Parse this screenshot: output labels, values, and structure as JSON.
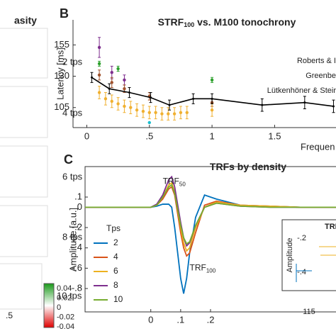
{
  "panel_a": {
    "title": "asity",
    "labels": [
      "2 tps",
      "4 tps",
      "6 tps",
      "8 tps",
      "10 tps"
    ],
    "colorbar_ticks": [
      "0.04",
      "0.02",
      "0",
      "-0.02",
      "-0.04"
    ],
    "x_tick": ".5"
  },
  "chart_data": [
    {
      "type": "scatter",
      "panel_label": "B",
      "title": "STRF",
      "title_sub": "100",
      "title_rest": " vs. M100 tonochrony",
      "y_label": "Latency [ms]",
      "x_label": "Frequen",
      "xlim": [
        -0.11,
        1.99
      ],
      "ylim": [
        89,
        175
      ],
      "xticks": [
        0,
        {
          "value": 0.5,
          "label": ".5"
        },
        1,
        1.5
      ],
      "yticks": [
        105,
        130,
        155
      ],
      "series": [
        {
          "name": "Roberts & I",
          "color": "#7e2f8e",
          "x": [
            0.1,
            0.2,
            0.3
          ],
          "values": [
            153,
            133,
            127
          ],
          "errors": [
            8,
            5,
            4
          ]
        },
        {
          "name": "Greenbe",
          "color": "#2ca02c",
          "x": [
            0.1,
            0.25,
            1.0
          ],
          "values": [
            140,
            136,
            127
          ],
          "errors": [
            2,
            2,
            2
          ]
        },
        {
          "name": "Lütkenhöner & Steir",
          "color": "#a0522d",
          "x": [
            0.1,
            0.2,
            0.3,
            0.5,
            1.0
          ],
          "values": [
            131,
            125,
            120,
            114,
            109
          ],
          "errors": [
            4,
            4,
            3,
            3,
            3
          ]
        },
        {
          "color": "#f0b030",
          "x": [
            0.1,
            0.15,
            0.2,
            0.25,
            0.3,
            0.35,
            0.4,
            0.45,
            0.5,
            0.55,
            0.6,
            0.65,
            0.7,
            0.75,
            0.8,
            1.0
          ],
          "values": [
            117,
            112,
            110,
            108,
            106,
            105,
            103,
            102,
            101,
            101,
            100,
            100,
            100,
            101,
            101,
            103
          ],
          "errors": [
            5,
            5,
            5,
            5,
            5,
            5,
            5,
            5,
            5,
            5,
            5,
            5,
            5,
            5,
            5,
            5
          ]
        },
        {
          "color": "#17becf",
          "x": [
            0.5
          ],
          "values": [
            93
          ],
          "errors": [
            0
          ]
        },
        {
          "color": "#000000",
          "line": true,
          "x": [
            0.04,
            0.18,
            0.34,
            0.51,
            0.66,
            0.85,
            1.0,
            1.4,
            1.74,
            1.97
          ],
          "values": [
            129,
            120,
            117,
            113,
            107,
            112,
            112,
            107,
            109,
            106
          ],
          "errors": [
            4,
            4,
            4,
            4,
            4,
            4,
            4,
            5,
            5,
            5
          ]
        }
      ]
    },
    {
      "type": "line",
      "panel_label": "C",
      "title": "TRFs by density",
      "y_label": "Amplitude [a.u.]",
      "legend_title": "Tps",
      "xlim": [
        -0.22,
        0.62
      ],
      "ylim": [
        -1.03,
        0.4
      ],
      "xticks": [
        0,
        {
          "value": 0.1,
          "label": ".1"
        },
        {
          "value": 0.2,
          "label": ".2"
        }
      ],
      "yticks": [
        {
          "value": 0.1,
          "label": ".1"
        },
        0,
        {
          "value": -0.2,
          "label": "-.2"
        },
        {
          "value": -0.4,
          "label": "-.4"
        },
        {
          "value": -0.6,
          "label": "-.6"
        },
        {
          "value": -0.8,
          "label": "-.8"
        }
      ],
      "annotations": [
        {
          "text": "TRF",
          "sub": "50",
          "x": 0.04,
          "y": 0.25
        },
        {
          "text": "TRF",
          "sub": "100",
          "x": 0.13,
          "y": -0.6
        }
      ],
      "x": [
        -0.22,
        -0.1,
        0,
        0.02,
        0.04,
        0.06,
        0.07,
        0.08,
        0.1,
        0.11,
        0.12,
        0.13,
        0.15,
        0.18,
        0.22,
        0.3,
        0.4,
        0.5,
        0.62
      ],
      "series": [
        {
          "name": "2",
          "color": "#0072bd",
          "values": [
            0,
            0,
            0,
            0.01,
            0.03,
            0.03,
            0.0,
            -0.2,
            -0.7,
            -0.85,
            -0.7,
            -0.45,
            -0.1,
            0.12,
            0.08,
            0.02,
            0.01,
            0,
            0
          ]
        },
        {
          "name": "4",
          "color": "#d95319",
          "values": [
            0,
            0,
            0,
            0.02,
            0.08,
            0.18,
            0.2,
            0.12,
            -0.25,
            -0.4,
            -0.48,
            -0.45,
            -0.25,
            0.02,
            0.06,
            0.02,
            0.01,
            0,
            0
          ]
        },
        {
          "name": "6",
          "color": "#edb120",
          "values": [
            0,
            0,
            0,
            0.02,
            0.1,
            0.22,
            0.24,
            0.15,
            -0.2,
            -0.35,
            -0.43,
            -0.4,
            -0.2,
            0.0,
            0.05,
            0.02,
            0.01,
            0,
            0
          ]
        },
        {
          "name": "8",
          "color": "#7e2f8e",
          "values": [
            0,
            0,
            0,
            0.03,
            0.12,
            0.27,
            0.3,
            0.2,
            -0.15,
            -0.3,
            -0.38,
            -0.35,
            -0.18,
            0.0,
            0.04,
            0.01,
            0,
            0,
            0
          ]
        },
        {
          "name": "10",
          "color": "#77ac30",
          "values": [
            0,
            0,
            0,
            0.02,
            0.1,
            0.2,
            0.22,
            0.14,
            -0.18,
            -0.3,
            -0.36,
            -0.34,
            -0.18,
            0.0,
            0.04,
            0.01,
            0,
            0,
            0
          ]
        }
      ],
      "inset": {
        "title": "TRI",
        "y_label": "Amplitude",
        "yticks": [
          "-.2",
          "-.4"
        ],
        "x_tick": "115"
      }
    }
  ]
}
